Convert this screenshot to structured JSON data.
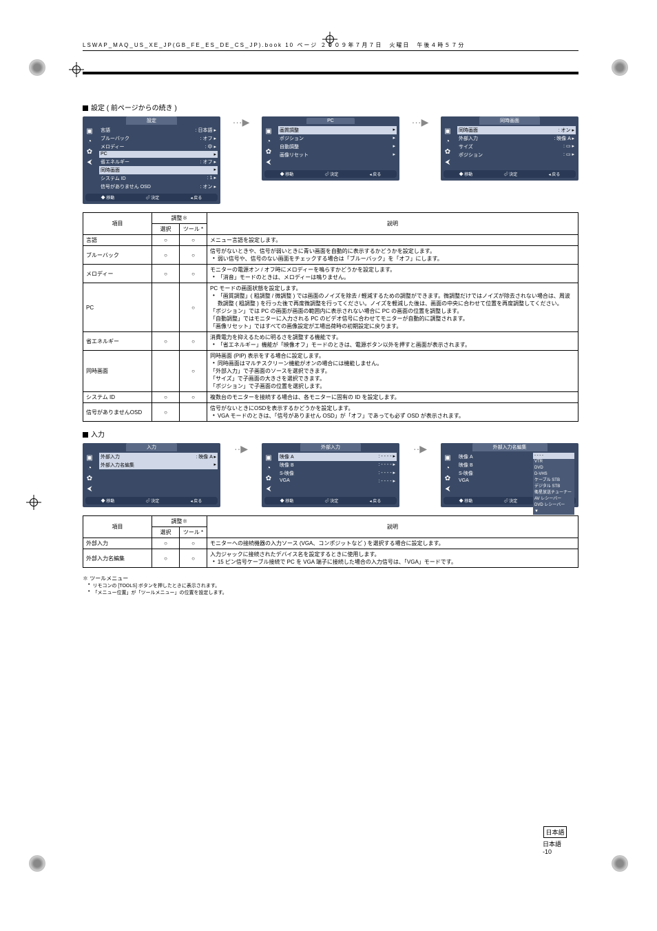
{
  "print_header": "LSWAP_MAQ_US_XE_JP(GB_FE_ES_DE_CS_JP).book  10 ページ  ２００９年７月７日　火曜日　午後４時５７分",
  "section1": {
    "title": "設定 ( 前ページからの続き )",
    "menu_a": {
      "tab": "設定",
      "items": [
        {
          "l": "言語",
          "r": ": 日本語"
        },
        {
          "l": "ブルーバック",
          "r": ": オフ"
        },
        {
          "l": "メロディー",
          "r": ": 中"
        },
        {
          "l": "PC",
          "r": ""
        },
        {
          "l": "省エネルギー",
          "r": ": オフ"
        },
        {
          "l": "同時画面",
          "r": ""
        },
        {
          "l": "システム ID",
          "r": ": 1"
        },
        {
          "l": "信号がありません OSD",
          "r": ": オン"
        }
      ],
      "hl": [
        3,
        5
      ],
      "footer": [
        "◆ 移動",
        "⏎ 決定",
        "◂ 戻る"
      ]
    },
    "menu_b": {
      "tab": "PC",
      "items": [
        {
          "l": "画質調整",
          "r": ""
        },
        {
          "l": "ポジション",
          "r": ""
        },
        {
          "l": "自動調整",
          "r": ""
        },
        {
          "l": "画像リセット",
          "r": ""
        }
      ],
      "hl": [
        0
      ],
      "footer": [
        "◆ 移動",
        "⏎ 決定",
        "◂ 戻る"
      ]
    },
    "menu_c": {
      "tab": "同時画面",
      "items": [
        {
          "l": "同時画面",
          "r": ": オン"
        },
        {
          "l": "外部入力",
          "r": ": 映像 A"
        },
        {
          "l": "サイズ",
          "r": ": ▭"
        },
        {
          "l": "ポジション",
          "r": ": ▭"
        }
      ],
      "hl": [
        0
      ],
      "footer": [
        "◆ 移動",
        "⏎ 決定",
        "◂ 戻る"
      ]
    },
    "table": {
      "head": [
        "項目",
        "選択",
        "ツール *",
        "説明"
      ],
      "rows": [
        {
          "item": "言語",
          "sel": "○",
          "tool": "○",
          "desc": "メニュー言語を設定します。"
        },
        {
          "item": "ブルーバック",
          "sel": "○",
          "tool": "○",
          "desc": "信号がないときや、信号が弱いときに青い画面を自動的に表示するかどうかを設定します。\n• 弱い信号や、信号のない画面をチェックする場合は「ブルーバック」を「オフ」にします。"
        },
        {
          "item": "メロディー",
          "sel": "○",
          "tool": "○",
          "desc": "モニターの電源オン / オフ時にメロディーを鳴らすかどうかを設定します。\n• 「消音」モードのときは、メロディーは鳴りません。"
        },
        {
          "item": "PC",
          "sel": "",
          "tool": "○",
          "desc": "PC モードの画面状態を設定します。\n• 「画質調整」( 粗調整 / 微調整 ) では画面のノイズを除去 / 軽減するための調整ができます。微調整だけではノイズが除去されない場合は、周波数調整 ( 粗調整 ) を行った後で再度微調整を行ってください。ノイズを軽減した後は、画面の中央に合わせて位置を再度調整してください。\n「ポジション」では PC の画面が画面の範囲内に表示されない場合に PC の画面の位置を調整します。\n「自動調整」ではモニターに入力される PC のビデオ信号に合わせてモニターが自動的に調整されます。\n「画像リセット」ではすべての画像設定が工場出荷時の初期設定に戻ります。"
        },
        {
          "item": "省エネルギー",
          "sel": "○",
          "tool": "○",
          "desc": "消費電力を抑えるために明るさを調整する機能です。\n• 「省エネルギー」機能が「映像オフ」モードのときは、電源ボタン以外を押すと画面が表示されます。"
        },
        {
          "item": "同時画面",
          "sel": "",
          "tool": "○",
          "desc": "同時画面 (PIP) 表示をする場合に設定します。\n• 同時画面はマルチスクリーン機能がオンの場合には機能しません。\n「外部入力」で子画面のソースを選択できます。\n「サイズ」で子画面の大きさを選択できます。\n「ポジション」で子画面の位置を選択します。"
        },
        {
          "item": "システム ID",
          "sel": "○",
          "tool": "○",
          "desc": "複数台のモニターを接続する場合は、各モニターに固有の ID を設定します。"
        },
        {
          "item": "信号がありませんOSD",
          "sel": "○",
          "tool": "",
          "desc": "信号がないときにOSDを表示するかどうかを設定します。\n• VGA モードのときは、「信号がありません OSD」が「オフ」であっても必ず OSD が表示されます。"
        }
      ]
    }
  },
  "section2": {
    "title": "入力",
    "menu_a": {
      "tab": "入力",
      "items": [
        {
          "l": "外部入力",
          "r": ": 映像 A"
        },
        {
          "l": "外部入力名編集",
          "r": ""
        }
      ],
      "hl": [
        0,
        1
      ],
      "footer": [
        "◆ 移動",
        "⏎ 決定",
        "◂ 戻る"
      ]
    },
    "menu_b": {
      "tab": "外部入力",
      "items": [
        {
          "l": "映像 A",
          "r": ": - - - -"
        },
        {
          "l": "映像 B",
          "r": ": - - - -"
        },
        {
          "l": "S-映像",
          "r": ": - - - -"
        },
        {
          "l": "VGA",
          "r": ": - - - -"
        }
      ],
      "hl": [
        0
      ],
      "footer": [
        "◆ 移動",
        "⏎ 決定",
        "◂ 戻る"
      ]
    },
    "menu_c": {
      "tab": "外部入力名編集",
      "items": [
        {
          "l": "映像 A",
          "r": ":"
        },
        {
          "l": "映像 B",
          "r": ":"
        },
        {
          "l": "S-映像",
          "r": ":"
        },
        {
          "l": "VGA",
          "r": ":"
        }
      ],
      "hl": [],
      "options": [
        "- - - -",
        "VTR",
        "DVD",
        "D-VHS",
        "ケーブル STB",
        "デジタル STB",
        "衛星放送チューナー",
        "AV レシーバー",
        "DVD レシーバー",
        "▼"
      ],
      "opt_hl": 0,
      "footer": [
        "◆ 移動",
        "⏎ 決定",
        "◂ 戻る"
      ]
    },
    "table": {
      "head": [
        "項目",
        "選択",
        "ツール *",
        "説明"
      ],
      "rows": [
        {
          "item": "外部入力",
          "sel": "○",
          "tool": "○",
          "desc": "モニターへの接続機器の入力ソース (VGA、コンポジットなど ) を選択する場合に設定します。"
        },
        {
          "item": "外部入力名編集",
          "sel": "○",
          "tool": "○",
          "desc": "入力ジャックに接続されたデバイス名を設定するときに使用します。\n• 15 ピン信号ケーブル接続で PC を VGA 端子に接続した場合の入力信号は、「VGA」モードです。"
        }
      ]
    }
  },
  "footnote": {
    "ast": "✽ ツールメニュー",
    "lines": [
      "リモコンの [TOOLS] ボタンを押したときに表示されます。",
      "「メニュー位置」が「ツールメニュー」の位置を設定します。"
    ]
  },
  "page_label": "日本語",
  "page_no": "日本語 -10"
}
